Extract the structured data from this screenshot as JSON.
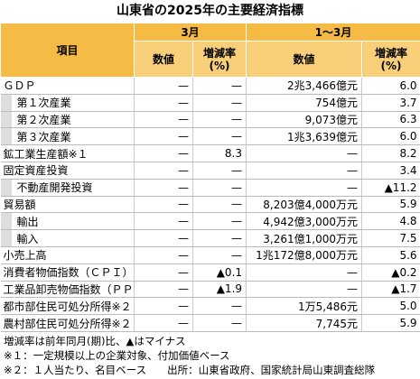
{
  "title": "山東省の2025年の主要経済指標",
  "table": {
    "header": {
      "item": "項目",
      "period_march": "3月",
      "period_q1": "1～3月",
      "value": "数値",
      "growth_lines": [
        "増減率",
        "(%)"
      ]
    },
    "rows": [
      [
        "ＧＤＰ",
        "—",
        "—",
        "2兆3,466億元",
        "6.0"
      ],
      [
        "第１次産業",
        "—",
        "—",
        "754億元",
        "3.7"
      ],
      [
        "第２次産業",
        "—",
        "—",
        "9,073億元",
        "6.3"
      ],
      [
        "第３次産業",
        "—",
        "—",
        "1兆3,639億元",
        "6.0"
      ],
      [
        "鉱工業生産額※１",
        "—",
        "8.3",
        "—",
        "8.2"
      ],
      [
        "固定資産投資",
        "—",
        "—",
        "—",
        "3.4"
      ],
      [
        "不動産開発投資",
        "—",
        "—",
        "—",
        "▲11.2"
      ],
      [
        "貿易額",
        "—",
        "—",
        "8,203億4,000万元",
        "5.9"
      ],
      [
        "輸出",
        "—",
        "—",
        "4,942億3,000万元",
        "4.8"
      ],
      [
        "輸入",
        "—",
        "—",
        "3,261億1,000万元",
        "7.5"
      ],
      [
        "小売上高",
        "—",
        "—",
        "1兆172億8,000万元",
        "5.6"
      ],
      [
        "消費者物価指数（ＣＰＩ）",
        "—",
        "▲0.1",
        "—",
        "▲0.2"
      ],
      [
        "工業品卸売物価指数（ＰＰＩ）",
        "—",
        "▲1.9",
        "—",
        "▲1.7"
      ],
      [
        "都市部住民可処分所得※２",
        "—",
        "—",
        "1万5,486元",
        "5.0"
      ],
      [
        "農村部住民可処分所得※２",
        "—",
        "—",
        "7,745元",
        "5.9"
      ]
    ]
  },
  "notes": [
    "増減率は前年同月(期)比、▲はマイナス",
    "※１：一定規模以上の企業対象、付加価値ベース",
    "※２：１人当たり、名目ベース　　出所：山東省政府、国家統計局山東調査総隊"
  ]
}
